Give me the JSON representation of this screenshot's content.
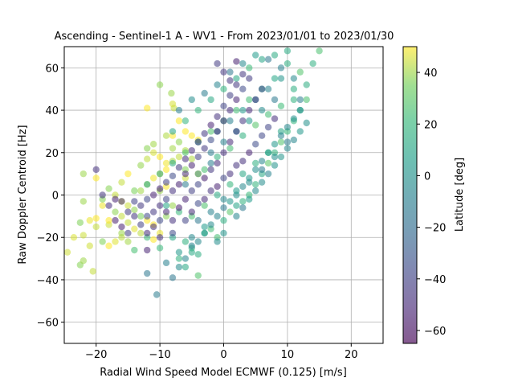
{
  "chart_data": {
    "type": "scatter",
    "title": "Ascending - Sentinel-1 A - WV1 - From 2023/01/01 to 2023/01/30",
    "xlabel": "Radial Wind Speed Model ECMWF (0.125) [m/s]",
    "ylabel": "Raw Doppler Centroid [Hz]",
    "xlim": [
      -25,
      25
    ],
    "ylim": [
      -70,
      70
    ],
    "xticks": [
      -20,
      -10,
      0,
      10,
      20
    ],
    "xtick_labels": [
      "−20",
      "−10",
      "0",
      "10",
      "20"
    ],
    "yticks": [
      -60,
      -40,
      -20,
      0,
      20,
      40,
      60
    ],
    "ytick_labels": [
      "−60",
      "−40",
      "−20",
      "0",
      "20",
      "40",
      "60"
    ],
    "grid": true,
    "colormap": "viridis",
    "point_alpha": 0.55,
    "colorbar": {
      "label": "Latitude [deg]",
      "range": [
        -65,
        50
      ],
      "ticks": [
        40,
        20,
        0,
        -20,
        -40,
        -60
      ],
      "tick_labels": [
        "40",
        "20",
        "0",
        "−20",
        "−40",
        "−60"
      ]
    },
    "series": [
      {
        "lat_cluster": 45,
        "points": [
          [
            -22,
            -19
          ],
          [
            -23.5,
            -20
          ],
          [
            -22.5,
            -33
          ],
          [
            -22,
            -31
          ],
          [
            -20.5,
            -36
          ],
          [
            -21,
            -24
          ],
          [
            -19,
            -22
          ],
          [
            -18,
            -24
          ],
          [
            -17,
            -22
          ],
          [
            -16,
            -20
          ],
          [
            -15,
            -22
          ],
          [
            -20,
            -11
          ],
          [
            -21,
            -12
          ],
          [
            -22.5,
            -13
          ],
          [
            -24.5,
            -27
          ],
          [
            -22,
            -3
          ],
          [
            -19,
            -5
          ],
          [
            -17,
            -8
          ],
          [
            -16,
            -3
          ],
          [
            -15,
            -5
          ],
          [
            -14,
            -7
          ],
          [
            -13,
            -10
          ],
          [
            -12,
            -12
          ],
          [
            -11,
            -14
          ],
          [
            -18,
            3
          ],
          [
            -16,
            6
          ],
          [
            -15,
            10
          ],
          [
            -13,
            14
          ],
          [
            -12,
            17
          ],
          [
            -11,
            20
          ],
          [
            -9,
            15
          ],
          [
            -8,
            22
          ],
          [
            -7,
            25
          ],
          [
            -12,
            41
          ],
          [
            -7.8,
            41
          ],
          [
            -8.2,
            48
          ],
          [
            -8,
            43
          ],
          [
            -9,
            28
          ],
          [
            -10,
            52
          ],
          [
            -7,
            35
          ],
          [
            -6,
            21
          ],
          [
            -5,
            17
          ],
          [
            -6,
            12
          ],
          [
            -4,
            10
          ],
          [
            -22,
            10
          ],
          [
            -20,
            8
          ],
          [
            -18,
            -14
          ],
          [
            -16,
            -18
          ],
          [
            -14,
            -16
          ],
          [
            -13,
            -18
          ],
          [
            -11,
            -21
          ],
          [
            -10,
            -18
          ],
          [
            -9,
            -10
          ],
          [
            -8,
            -5
          ],
          [
            -17,
            0
          ],
          [
            -19,
            -2
          ],
          [
            -14,
            2
          ],
          [
            -12,
            5
          ],
          [
            -11,
            8
          ],
          [
            -10,
            10
          ],
          [
            -9,
            12
          ],
          [
            -8,
            16
          ],
          [
            -7,
            18
          ],
          [
            -6,
            8
          ],
          [
            -16,
            -10
          ],
          [
            -18,
            -12
          ],
          [
            -20,
            -15
          ],
          [
            -15,
            -13
          ],
          [
            -13,
            2
          ],
          [
            -10,
            2
          ],
          [
            -9,
            4
          ],
          [
            -12,
            22
          ],
          [
            -11,
            24
          ],
          [
            -10,
            18
          ],
          [
            -8,
            28
          ],
          [
            -6,
            30
          ],
          [
            -5,
            28
          ],
          [
            -4,
            26
          ]
        ],
        "count_extra": 0
      },
      {
        "lat_cluster": 20,
        "points": [
          [
            -14,
            -26
          ],
          [
            -12,
            -20
          ],
          [
            -10,
            -25
          ],
          [
            -8,
            -20
          ],
          [
            -6,
            -22
          ],
          [
            -5,
            -25
          ],
          [
            -4,
            -28
          ],
          [
            -3,
            -18
          ],
          [
            -2,
            -16
          ],
          [
            -1,
            -20
          ],
          [
            0,
            -12
          ],
          [
            1,
            -8
          ],
          [
            2,
            -5
          ],
          [
            3,
            -3
          ],
          [
            4,
            0
          ],
          [
            5,
            5
          ],
          [
            6,
            10
          ],
          [
            7,
            15
          ],
          [
            8,
            20
          ],
          [
            9,
            25
          ],
          [
            10,
            30
          ],
          [
            11,
            35
          ],
          [
            12,
            40
          ],
          [
            13,
            45
          ],
          [
            12,
            58
          ],
          [
            10,
            62
          ],
          [
            8,
            55
          ],
          [
            6,
            50
          ],
          [
            4,
            45
          ],
          [
            2,
            40
          ],
          [
            0,
            35
          ],
          [
            -2,
            30
          ],
          [
            -4,
            25
          ],
          [
            -6,
            20
          ],
          [
            -8,
            15
          ],
          [
            -10,
            10
          ],
          [
            -12,
            5
          ],
          [
            -9,
            -5
          ],
          [
            -7,
            -8
          ],
          [
            -5,
            -10
          ],
          [
            -3,
            -5
          ],
          [
            -1,
            0
          ],
          [
            1,
            5
          ],
          [
            3,
            10
          ],
          [
            5,
            15
          ],
          [
            7,
            20
          ],
          [
            9,
            30
          ],
          [
            11,
            45
          ],
          [
            13,
            52
          ],
          [
            14,
            62
          ],
          [
            15,
            68
          ],
          [
            10,
            68
          ],
          [
            8,
            66
          ],
          [
            6,
            64
          ],
          [
            4,
            60
          ],
          [
            2,
            55
          ],
          [
            0,
            50
          ],
          [
            -2,
            45
          ],
          [
            -4,
            40
          ],
          [
            -6,
            35
          ],
          [
            -8,
            30
          ],
          [
            -3,
            12
          ],
          [
            -1,
            18
          ],
          [
            1,
            22
          ],
          [
            3,
            28
          ],
          [
            5,
            33
          ],
          [
            7,
            38
          ],
          [
            9,
            42
          ],
          [
            11,
            50
          ],
          [
            -7,
            -30
          ],
          [
            -6,
            -34
          ],
          [
            -4,
            -38
          ],
          [
            -5,
            -27
          ]
        ],
        "count_extra": 0
      },
      {
        "lat_cluster": -5,
        "points": [
          [
            -12,
            -37
          ],
          [
            -10.5,
            -47
          ],
          [
            -9,
            -32
          ],
          [
            -8,
            -39
          ],
          [
            -7,
            -34
          ],
          [
            -6,
            -30
          ],
          [
            -5,
            -24
          ],
          [
            -4,
            -22
          ],
          [
            -3,
            -18
          ],
          [
            -2,
            -14
          ],
          [
            -1,
            -10
          ],
          [
            0,
            -6
          ],
          [
            1,
            -3
          ],
          [
            2,
            0
          ],
          [
            3,
            4
          ],
          [
            4,
            8
          ],
          [
            5,
            12
          ],
          [
            6,
            16
          ],
          [
            7,
            20
          ],
          [
            8,
            24
          ],
          [
            9,
            28
          ],
          [
            10,
            32
          ],
          [
            11,
            36
          ],
          [
            12,
            40
          ],
          [
            -7,
            -27
          ],
          [
            -5,
            -20
          ],
          [
            -3,
            -15
          ],
          [
            -1,
            -22
          ],
          [
            0,
            -18
          ],
          [
            2,
            -10
          ],
          [
            3,
            -6
          ],
          [
            4,
            -2
          ],
          [
            5,
            2
          ],
          [
            6,
            6
          ],
          [
            7,
            10
          ],
          [
            8,
            14
          ],
          [
            9,
            18
          ],
          [
            10,
            22
          ],
          [
            11,
            26
          ],
          [
            12,
            30
          ],
          [
            13,
            34
          ],
          [
            -4,
            -12
          ],
          [
            -2,
            -8
          ],
          [
            0,
            -2
          ],
          [
            2,
            2
          ],
          [
            4,
            6
          ],
          [
            6,
            12
          ],
          [
            8,
            18
          ],
          [
            10,
            25
          ],
          [
            12,
            45
          ],
          [
            11,
            55
          ],
          [
            9,
            60
          ],
          [
            7,
            64
          ],
          [
            5,
            66
          ],
          [
            3,
            62
          ],
          [
            1,
            58
          ],
          [
            -1,
            52
          ],
          [
            -3,
            48
          ],
          [
            -5,
            45
          ],
          [
            -7,
            40
          ],
          [
            -1,
            30
          ],
          [
            1,
            35
          ],
          [
            3,
            40
          ],
          [
            5,
            45
          ],
          [
            7,
            50
          ],
          [
            9,
            55
          ],
          [
            -2,
            20
          ],
          [
            0,
            25
          ],
          [
            2,
            30
          ],
          [
            4,
            35
          ],
          [
            6,
            40
          ],
          [
            8,
            45
          ],
          [
            -6,
            5
          ],
          [
            -4,
            10
          ],
          [
            -2,
            15
          ]
        ],
        "count_extra": 0
      },
      {
        "lat_cluster": -45,
        "points": [
          [
            -20,
            12
          ],
          [
            -19,
            0
          ],
          [
            -18,
            -5
          ],
          [
            -17,
            -12
          ],
          [
            -16,
            -15
          ],
          [
            -15,
            -18
          ],
          [
            -14,
            -10
          ],
          [
            -13,
            -5
          ],
          [
            -12,
            -2
          ],
          [
            -11,
            0
          ],
          [
            -10,
            -5
          ],
          [
            -9,
            -8
          ],
          [
            -8,
            -12
          ],
          [
            -7,
            -6
          ],
          [
            -6,
            -2
          ],
          [
            -5,
            2
          ],
          [
            -4,
            5
          ],
          [
            -3,
            8
          ],
          [
            -2,
            12
          ],
          [
            -1,
            15
          ],
          [
            0,
            20
          ],
          [
            1,
            25
          ],
          [
            2,
            30
          ],
          [
            3,
            35
          ],
          [
            4,
            40
          ],
          [
            5,
            45
          ],
          [
            6,
            50
          ],
          [
            -12,
            -10
          ],
          [
            -11,
            -15
          ],
          [
            -10,
            -12
          ],
          [
            -9,
            -2
          ],
          [
            -8,
            2
          ],
          [
            -7,
            5
          ],
          [
            -6,
            10
          ],
          [
            -5,
            14
          ],
          [
            -4,
            18
          ],
          [
            -3,
            22
          ],
          [
            -2,
            26
          ],
          [
            -1,
            30
          ],
          [
            0,
            35
          ],
          [
            1,
            40
          ],
          [
            2,
            45
          ],
          [
            3,
            50
          ],
          [
            4,
            55
          ],
          [
            -14,
            -3
          ],
          [
            -13,
            -14
          ],
          [
            -12,
            -18
          ],
          [
            -11,
            -8
          ],
          [
            -10,
            3
          ],
          [
            -9,
            6
          ],
          [
            -8,
            9
          ],
          [
            -7,
            13
          ],
          [
            -6,
            17
          ],
          [
            -5,
            21
          ],
          [
            -4,
            25
          ],
          [
            -3,
            29
          ],
          [
            -2,
            33
          ],
          [
            -1,
            37
          ],
          [
            0,
            42
          ],
          [
            1,
            47
          ],
          [
            2,
            52
          ],
          [
            3,
            57
          ],
          [
            -15,
            -8
          ],
          [
            -16,
            -3
          ],
          [
            -17,
            -2
          ],
          [
            -12,
            -26
          ],
          [
            -10,
            -20
          ],
          [
            -8,
            -18
          ],
          [
            -6,
            -12
          ],
          [
            -4,
            -4
          ],
          [
            -2,
            2
          ],
          [
            0,
            8
          ],
          [
            2,
            14
          ],
          [
            4,
            20
          ],
          [
            6,
            28
          ],
          [
            8,
            36
          ],
          [
            -5,
            -8
          ],
          [
            -3,
            -2
          ],
          [
            -1,
            4
          ],
          [
            1,
            10
          ],
          [
            3,
            16
          ],
          [
            5,
            24
          ],
          [
            7,
            32
          ],
          [
            -1,
            62
          ],
          [
            0,
            58
          ],
          [
            2,
            63
          ],
          [
            1,
            54
          ]
        ],
        "count_extra": 0
      }
    ]
  }
}
